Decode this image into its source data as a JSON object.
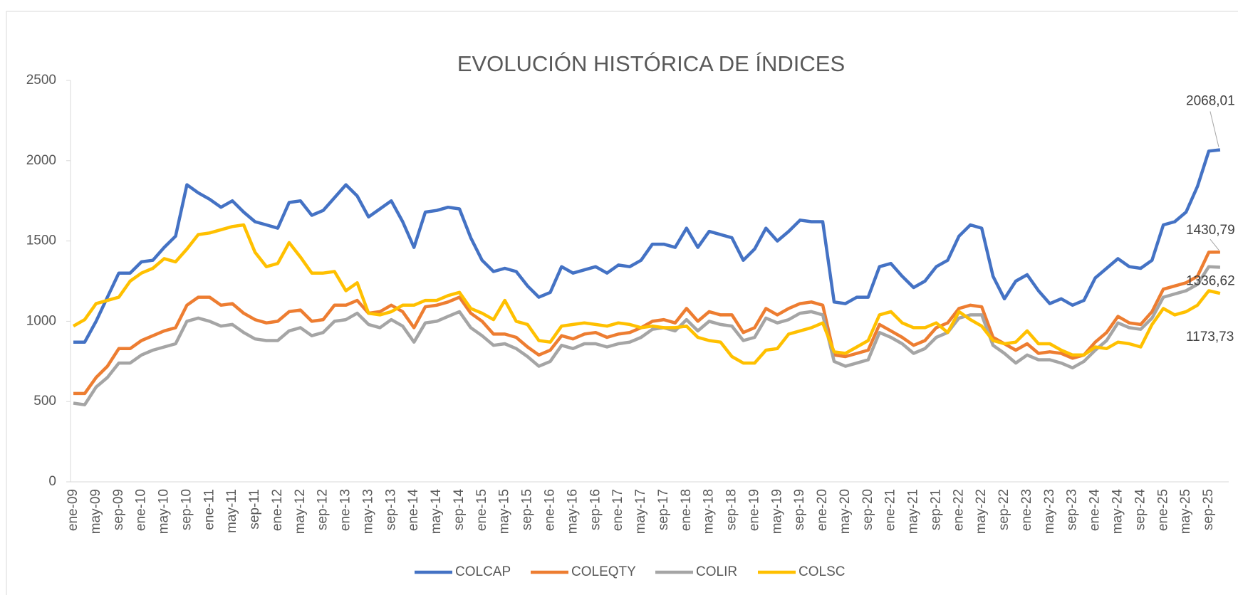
{
  "chart_data": {
    "type": "line",
    "title": "EVOLUCIÓN HISTÓRICA DE ÍNDICES",
    "categories": [
      "ene-09",
      null,
      "may-09",
      null,
      "sep-09",
      null,
      "ene-10",
      null,
      "may-10",
      null,
      "sep-10",
      null,
      "ene-11",
      null,
      "may-11",
      null,
      "sep-11",
      null,
      "ene-12",
      null,
      "may-12",
      null,
      "sep-12",
      null,
      "ene-13",
      null,
      "may-13",
      null,
      "sep-13",
      null,
      "ene-14",
      null,
      "may-14",
      null,
      "sep-14",
      null,
      "ene-15",
      null,
      "may-15",
      null,
      "sep-15",
      null,
      "ene-16",
      null,
      "may-16",
      null,
      "sep-16",
      null,
      "ene-17",
      null,
      "may-17",
      null,
      "sep-17",
      null,
      "ene-18",
      null,
      "may-18",
      null,
      "sep-18",
      null,
      "ene-19",
      null,
      "may-19",
      null,
      "sep-19",
      null,
      "ene-20",
      null,
      "may-20",
      null,
      "sep-20",
      null,
      "ene-21",
      null,
      "may-21",
      null,
      "sep-21",
      null,
      "ene-22",
      null,
      "may-22",
      null,
      "sep-22",
      null,
      "ene-23",
      null,
      "may-23",
      null,
      "sep-23",
      null,
      "ene-24",
      null,
      "may-24",
      null,
      "sep-24",
      null,
      "ene-25",
      null,
      "may-25",
      null,
      "sep-25",
      null
    ],
    "series": [
      {
        "name": "COLCAP",
        "color": "#4472c4",
        "end_label": "2068,01",
        "values": [
          870,
          870,
          1000,
          1150,
          1300,
          1300,
          1370,
          1380,
          1460,
          1530,
          1850,
          1800,
          1760,
          1710,
          1750,
          1680,
          1620,
          1600,
          1580,
          1740,
          1750,
          1660,
          1690,
          1770,
          1850,
          1780,
          1650,
          1700,
          1750,
          1620,
          1460,
          1680,
          1690,
          1710,
          1700,
          1520,
          1380,
          1310,
          1330,
          1310,
          1220,
          1150,
          1180,
          1340,
          1300,
          1320,
          1340,
          1300,
          1350,
          1340,
          1380,
          1480,
          1480,
          1460,
          1580,
          1460,
          1560,
          1540,
          1520,
          1380,
          1450,
          1580,
          1500,
          1560,
          1630,
          1620,
          1620,
          1120,
          1110,
          1150,
          1150,
          1340,
          1360,
          1280,
          1210,
          1250,
          1340,
          1380,
          1530,
          1600,
          1580,
          1280,
          1140,
          1250,
          1290,
          1190,
          1110,
          1140,
          1100,
          1130,
          1270,
          1330,
          1390,
          1340,
          1330,
          1380,
          1600,
          1620,
          1680,
          1840,
          2060,
          2068.01
        ]
      },
      {
        "name": "COLEQTY",
        "color": "#ed7d31",
        "end_label": "1430,79",
        "values": [
          550,
          550,
          650,
          720,
          830,
          830,
          880,
          910,
          940,
          960,
          1100,
          1150,
          1150,
          1100,
          1110,
          1050,
          1010,
          990,
          1000,
          1060,
          1070,
          1000,
          1010,
          1100,
          1100,
          1130,
          1050,
          1060,
          1100,
          1060,
          960,
          1090,
          1100,
          1120,
          1150,
          1050,
          1000,
          920,
          920,
          900,
          840,
          790,
          820,
          910,
          890,
          920,
          930,
          900,
          920,
          930,
          960,
          1000,
          1010,
          990,
          1080,
          1000,
          1060,
          1040,
          1040,
          930,
          960,
          1080,
          1040,
          1080,
          1110,
          1120,
          1100,
          790,
          780,
          800,
          820,
          980,
          940,
          900,
          850,
          880,
          960,
          990,
          1080,
          1100,
          1090,
          900,
          860,
          820,
          860,
          800,
          810,
          800,
          770,
          790,
          870,
          930,
          1030,
          990,
          980,
          1060,
          1200,
          1220,
          1240,
          1280,
          1430,
          1430.79
        ]
      },
      {
        "name": "COLIR",
        "color": "#a5a5a5",
        "end_label": "1336,62",
        "values": [
          490,
          480,
          590,
          650,
          740,
          740,
          790,
          820,
          840,
          860,
          1000,
          1020,
          1000,
          970,
          980,
          930,
          890,
          880,
          880,
          940,
          960,
          910,
          930,
          1000,
          1010,
          1050,
          980,
          960,
          1010,
          970,
          870,
          990,
          1000,
          1030,
          1060,
          960,
          910,
          850,
          860,
          830,
          780,
          720,
          750,
          850,
          830,
          860,
          860,
          840,
          860,
          870,
          900,
          950,
          960,
          940,
          1010,
          940,
          1000,
          980,
          970,
          880,
          900,
          1020,
          990,
          1010,
          1050,
          1060,
          1040,
          750,
          720,
          740,
          760,
          930,
          900,
          860,
          800,
          830,
          900,
          930,
          1020,
          1040,
          1040,
          850,
          800,
          740,
          790,
          760,
          760,
          740,
          710,
          750,
          820,
          880,
          990,
          960,
          950,
          1020,
          1150,
          1170,
          1190,
          1230,
          1340,
          1336.62
        ]
      },
      {
        "name": "COLSC",
        "color": "#ffc000",
        "end_label": "1173,73",
        "values": [
          970,
          1010,
          1110,
          1130,
          1150,
          1250,
          1300,
          1330,
          1390,
          1370,
          1450,
          1540,
          1550,
          1570,
          1590,
          1600,
          1430,
          1340,
          1360,
          1490,
          1400,
          1300,
          1300,
          1310,
          1190,
          1240,
          1050,
          1040,
          1060,
          1100,
          1100,
          1130,
          1130,
          1160,
          1180,
          1080,
          1050,
          1010,
          1130,
          1000,
          980,
          880,
          870,
          970,
          980,
          990,
          980,
          970,
          990,
          980,
          960,
          970,
          960,
          960,
          970,
          900,
          880,
          870,
          780,
          740,
          740,
          820,
          830,
          920,
          940,
          960,
          990,
          810,
          800,
          840,
          880,
          1040,
          1060,
          990,
          960,
          960,
          990,
          930,
          1060,
          1010,
          970,
          880,
          860,
          870,
          940,
          860,
          860,
          820,
          790,
          790,
          840,
          830,
          870,
          860,
          840,
          980,
          1080,
          1040,
          1060,
          1100,
          1190,
          1173.73
        ]
      }
    ],
    "ylim": [
      0,
      2500
    ],
    "yticks": [
      0,
      500,
      1000,
      1500,
      2000,
      2500
    ],
    "grid": false,
    "legend": "bottom"
  }
}
